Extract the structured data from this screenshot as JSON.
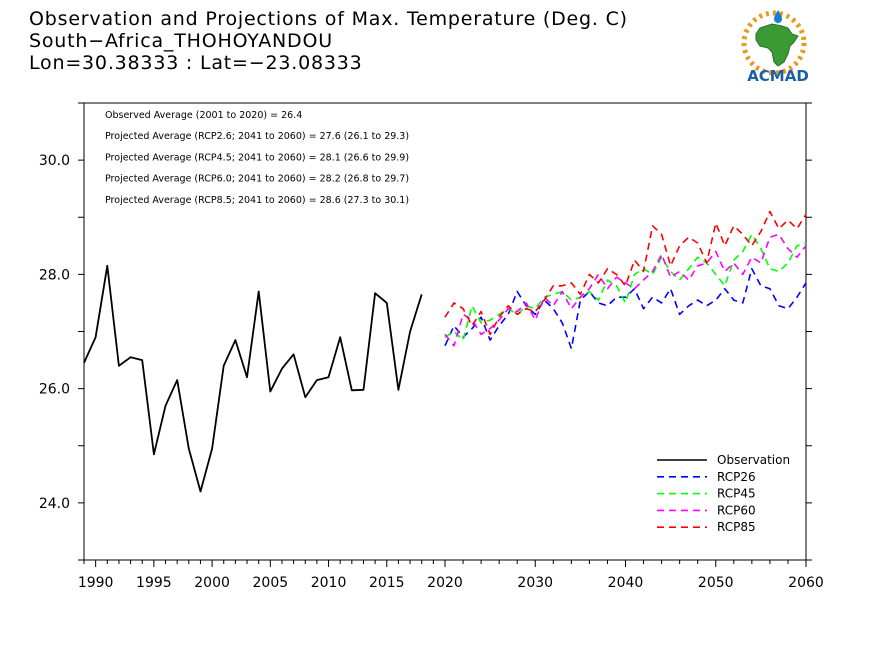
{
  "header": {
    "line1": "Observation and Projections of Max. Temperature (Deg. C)",
    "line2": "South−Africa_THOHOYANDOU",
    "line3": "Lon=30.38333 : Lat=−23.08333"
  },
  "logo": {
    "text": "ACMAD",
    "icon": "africa-map-logo",
    "colors": {
      "land": "#3a9a34",
      "text": "#1a5fa8",
      "sun": "#e89a1e",
      "drop": "#1a7ed0"
    }
  },
  "annotations": [
    "Observed Average (2001 to 2020) = 26.4",
    "Projected Average (RCP2.6; 2041 to 2060) = 27.6 (26.1 to 29.3)",
    "Projected Average (RCP4.5; 2041 to 2060) = 28.1 (26.6 to 29.9)",
    "Projected Average (RCP6.0; 2041 to 2060) = 28.2 (26.8 to 29.7)",
    "Projected Average (RCP8.5; 2041 to 2060) = 28.6 (27.3 to 30.1)"
  ],
  "chart_data": {
    "type": "line",
    "xlim": [
      1989,
      2060
    ],
    "ylim": [
      23.0,
      31.0
    ],
    "x_axis_break": {
      "left": [
        1989,
        2020
      ],
      "right": [
        2020,
        2060
      ]
    },
    "x_ticks": [
      {
        "value": 1990,
        "label": "1990"
      },
      {
        "value": 1995,
        "label": "1995"
      },
      {
        "value": 2000,
        "label": "2000"
      },
      {
        "value": 2005,
        "label": "2005"
      },
      {
        "value": 2010,
        "label": "2010"
      },
      {
        "value": 2015,
        "label": "2015"
      },
      {
        "value": 2020,
        "label": "2020"
      },
      {
        "value": 2030,
        "label": "2030"
      },
      {
        "value": 2040,
        "label": "2040"
      },
      {
        "value": 2050,
        "label": "2050"
      },
      {
        "value": 2060,
        "label": "2060"
      }
    ],
    "y_ticks": [
      {
        "value": 24.0,
        "label": "24.0"
      },
      {
        "value": 26.0,
        "label": "26.0"
      },
      {
        "value": 28.0,
        "label": "28.0"
      },
      {
        "value": 30.0,
        "label": "30.0"
      }
    ],
    "y_minor_ticks": [
      23,
      24,
      25,
      26,
      27,
      28,
      29,
      30,
      31
    ],
    "legend_position": "bottom-right",
    "series": [
      {
        "name": "Observation",
        "color": "#000000",
        "style": "solid",
        "x": [
          1989,
          1990,
          1991,
          1992,
          1993,
          1994,
          1995,
          1996,
          1997,
          1998,
          1999,
          2000,
          2001,
          2002,
          2003,
          2004,
          2005,
          2006,
          2007,
          2008,
          2009,
          2010,
          2011,
          2012,
          2013,
          2014,
          2015,
          2016,
          2017,
          2018,
          2019
        ],
        "y": [
          26.45,
          26.9,
          28.15,
          26.4,
          26.55,
          26.5,
          24.85,
          25.7,
          26.15,
          24.95,
          24.2,
          24.95,
          26.4,
          26.85,
          26.2,
          27.7,
          25.95,
          26.35,
          26.6,
          25.85,
          26.15,
          26.2,
          26.9,
          25.97,
          25.98,
          27.67,
          27.5,
          25.98,
          27.0,
          27.65,
          null
        ]
      },
      {
        "name": "RCP26",
        "color": "#0000ff",
        "style": "dashed",
        "x": [
          2020,
          2021,
          2022,
          2023,
          2024,
          2025,
          2026,
          2027,
          2028,
          2029,
          2030,
          2031,
          2032,
          2033,
          2034,
          2035,
          2036,
          2037,
          2038,
          2039,
          2040,
          2041,
          2042,
          2043,
          2044,
          2045,
          2046,
          2047,
          2048,
          2049,
          2050,
          2051,
          2052,
          2053,
          2054,
          2055,
          2056,
          2057,
          2058,
          2059,
          2060
        ],
        "y": [
          26.75,
          27.1,
          26.9,
          27.05,
          27.25,
          26.85,
          27.1,
          27.3,
          27.7,
          27.45,
          27.3,
          27.55,
          27.4,
          27.15,
          26.7,
          27.55,
          27.7,
          27.5,
          27.45,
          27.6,
          27.6,
          27.75,
          27.4,
          27.6,
          27.5,
          27.75,
          27.3,
          27.45,
          27.55,
          27.45,
          27.55,
          27.75,
          27.55,
          27.5,
          28.1,
          27.8,
          27.75,
          27.45,
          27.4,
          27.6,
          27.85
        ]
      },
      {
        "name": "RCP45",
        "color": "#00ff00",
        "style": "dashed",
        "x": [
          2020,
          2021,
          2022,
          2023,
          2024,
          2025,
          2026,
          2027,
          2028,
          2029,
          2030,
          2031,
          2032,
          2033,
          2034,
          2035,
          2036,
          2037,
          2038,
          2039,
          2040,
          2041,
          2042,
          2043,
          2044,
          2045,
          2046,
          2047,
          2048,
          2049,
          2050,
          2051,
          2052,
          2053,
          2054,
          2055,
          2056,
          2057,
          2058,
          2059,
          2060
        ],
        "y": [
          26.9,
          27.0,
          26.85,
          27.45,
          27.15,
          27.2,
          27.3,
          27.4,
          27.3,
          27.45,
          27.4,
          27.6,
          27.65,
          27.7,
          27.55,
          27.6,
          27.7,
          27.55,
          27.9,
          27.8,
          27.5,
          28.0,
          28.1,
          28.0,
          28.3,
          28.05,
          27.9,
          28.1,
          28.3,
          28.2,
          28.0,
          27.8,
          28.25,
          28.4,
          28.7,
          28.45,
          28.1,
          28.05,
          28.2,
          28.5,
          28.55
        ]
      },
      {
        "name": "RCP60",
        "color": "#ff00ff",
        "style": "dashed",
        "x": [
          2020,
          2021,
          2022,
          2023,
          2024,
          2025,
          2026,
          2027,
          2028,
          2029,
          2030,
          2031,
          2032,
          2033,
          2034,
          2035,
          2036,
          2037,
          2038,
          2039,
          2040,
          2041,
          2042,
          2043,
          2044,
          2045,
          2046,
          2047,
          2048,
          2049,
          2050,
          2051,
          2052,
          2053,
          2054,
          2055,
          2056,
          2057,
          2058,
          2059,
          2060
        ],
        "y": [
          26.95,
          26.75,
          27.3,
          27.2,
          26.95,
          27.05,
          27.2,
          27.4,
          27.35,
          27.5,
          27.2,
          27.6,
          27.45,
          27.7,
          27.4,
          27.6,
          27.75,
          28.0,
          27.75,
          27.95,
          27.85,
          27.75,
          27.9,
          28.05,
          28.35,
          27.95,
          28.05,
          27.9,
          28.15,
          28.2,
          28.4,
          28.05,
          28.2,
          28.0,
          28.3,
          28.2,
          28.65,
          28.7,
          28.45,
          28.3,
          28.5
        ]
      },
      {
        "name": "RCP85",
        "color": "#ff0000",
        "style": "dashed",
        "x": [
          2020,
          2021,
          2022,
          2023,
          2024,
          2025,
          2026,
          2027,
          2028,
          2029,
          2030,
          2031,
          2032,
          2033,
          2034,
          2035,
          2036,
          2037,
          2038,
          2039,
          2040,
          2041,
          2042,
          2043,
          2044,
          2045,
          2046,
          2047,
          2048,
          2049,
          2050,
          2051,
          2052,
          2053,
          2054,
          2055,
          2056,
          2057,
          2058,
          2059,
          2060
        ],
        "y": [
          27.25,
          27.5,
          27.4,
          27.1,
          27.35,
          26.95,
          27.25,
          27.45,
          27.3,
          27.4,
          27.35,
          27.55,
          27.8,
          27.8,
          27.85,
          27.65,
          28.0,
          27.85,
          28.1,
          28.0,
          27.8,
          28.25,
          28.05,
          28.85,
          28.7,
          28.15,
          28.5,
          28.65,
          28.55,
          28.2,
          28.9,
          28.5,
          28.85,
          28.7,
          28.5,
          28.75,
          29.1,
          28.8,
          28.95,
          28.8,
          29.05
        ]
      }
    ]
  }
}
